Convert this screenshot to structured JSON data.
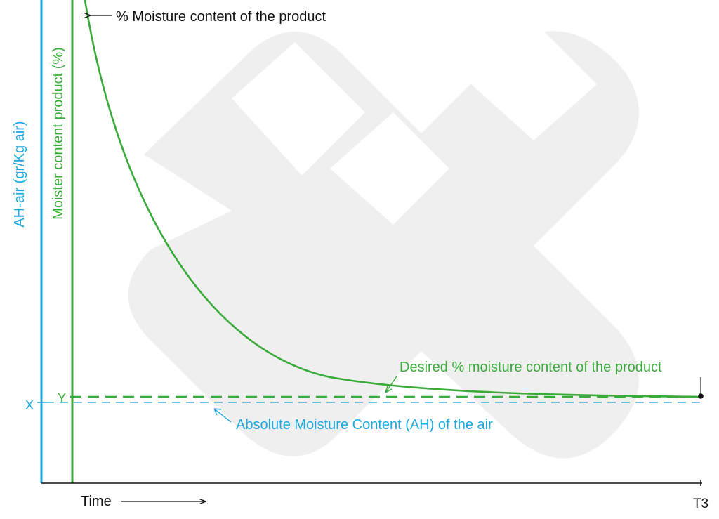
{
  "chart_data": {
    "type": "line",
    "title": "",
    "y_axes": [
      {
        "side": "left-outer",
        "label": "AH-air (gr/Kg air)",
        "color": "#1ba9e1"
      },
      {
        "side": "left-inner",
        "label": "Moister content product (%)",
        "color": "#3aab3a"
      }
    ],
    "xlabel": "Time",
    "x_ticks": [
      "T3"
    ],
    "y_ticks": {
      "x_level": "X",
      "y_level": "Y"
    },
    "series": [
      {
        "name": "% Moisture content of the product",
        "color": "#3aab3a",
        "style": "solid",
        "shape": "exponential decay toward Y level"
      },
      {
        "name": "Desired % moisture content of the product",
        "color": "#3aab3a",
        "style": "dashed",
        "level": "Y"
      },
      {
        "name": "Absolute Moisture Content (AH) of the air",
        "color": "#1ba9e1",
        "style": "dashed",
        "level": "X"
      }
    ],
    "grid": false
  },
  "colors": {
    "green": "#3aab3a",
    "blue": "#1ba9e1",
    "axis": "#111111",
    "watermark": "#efefef"
  },
  "watermark_icon": "logo-watermark-icon"
}
